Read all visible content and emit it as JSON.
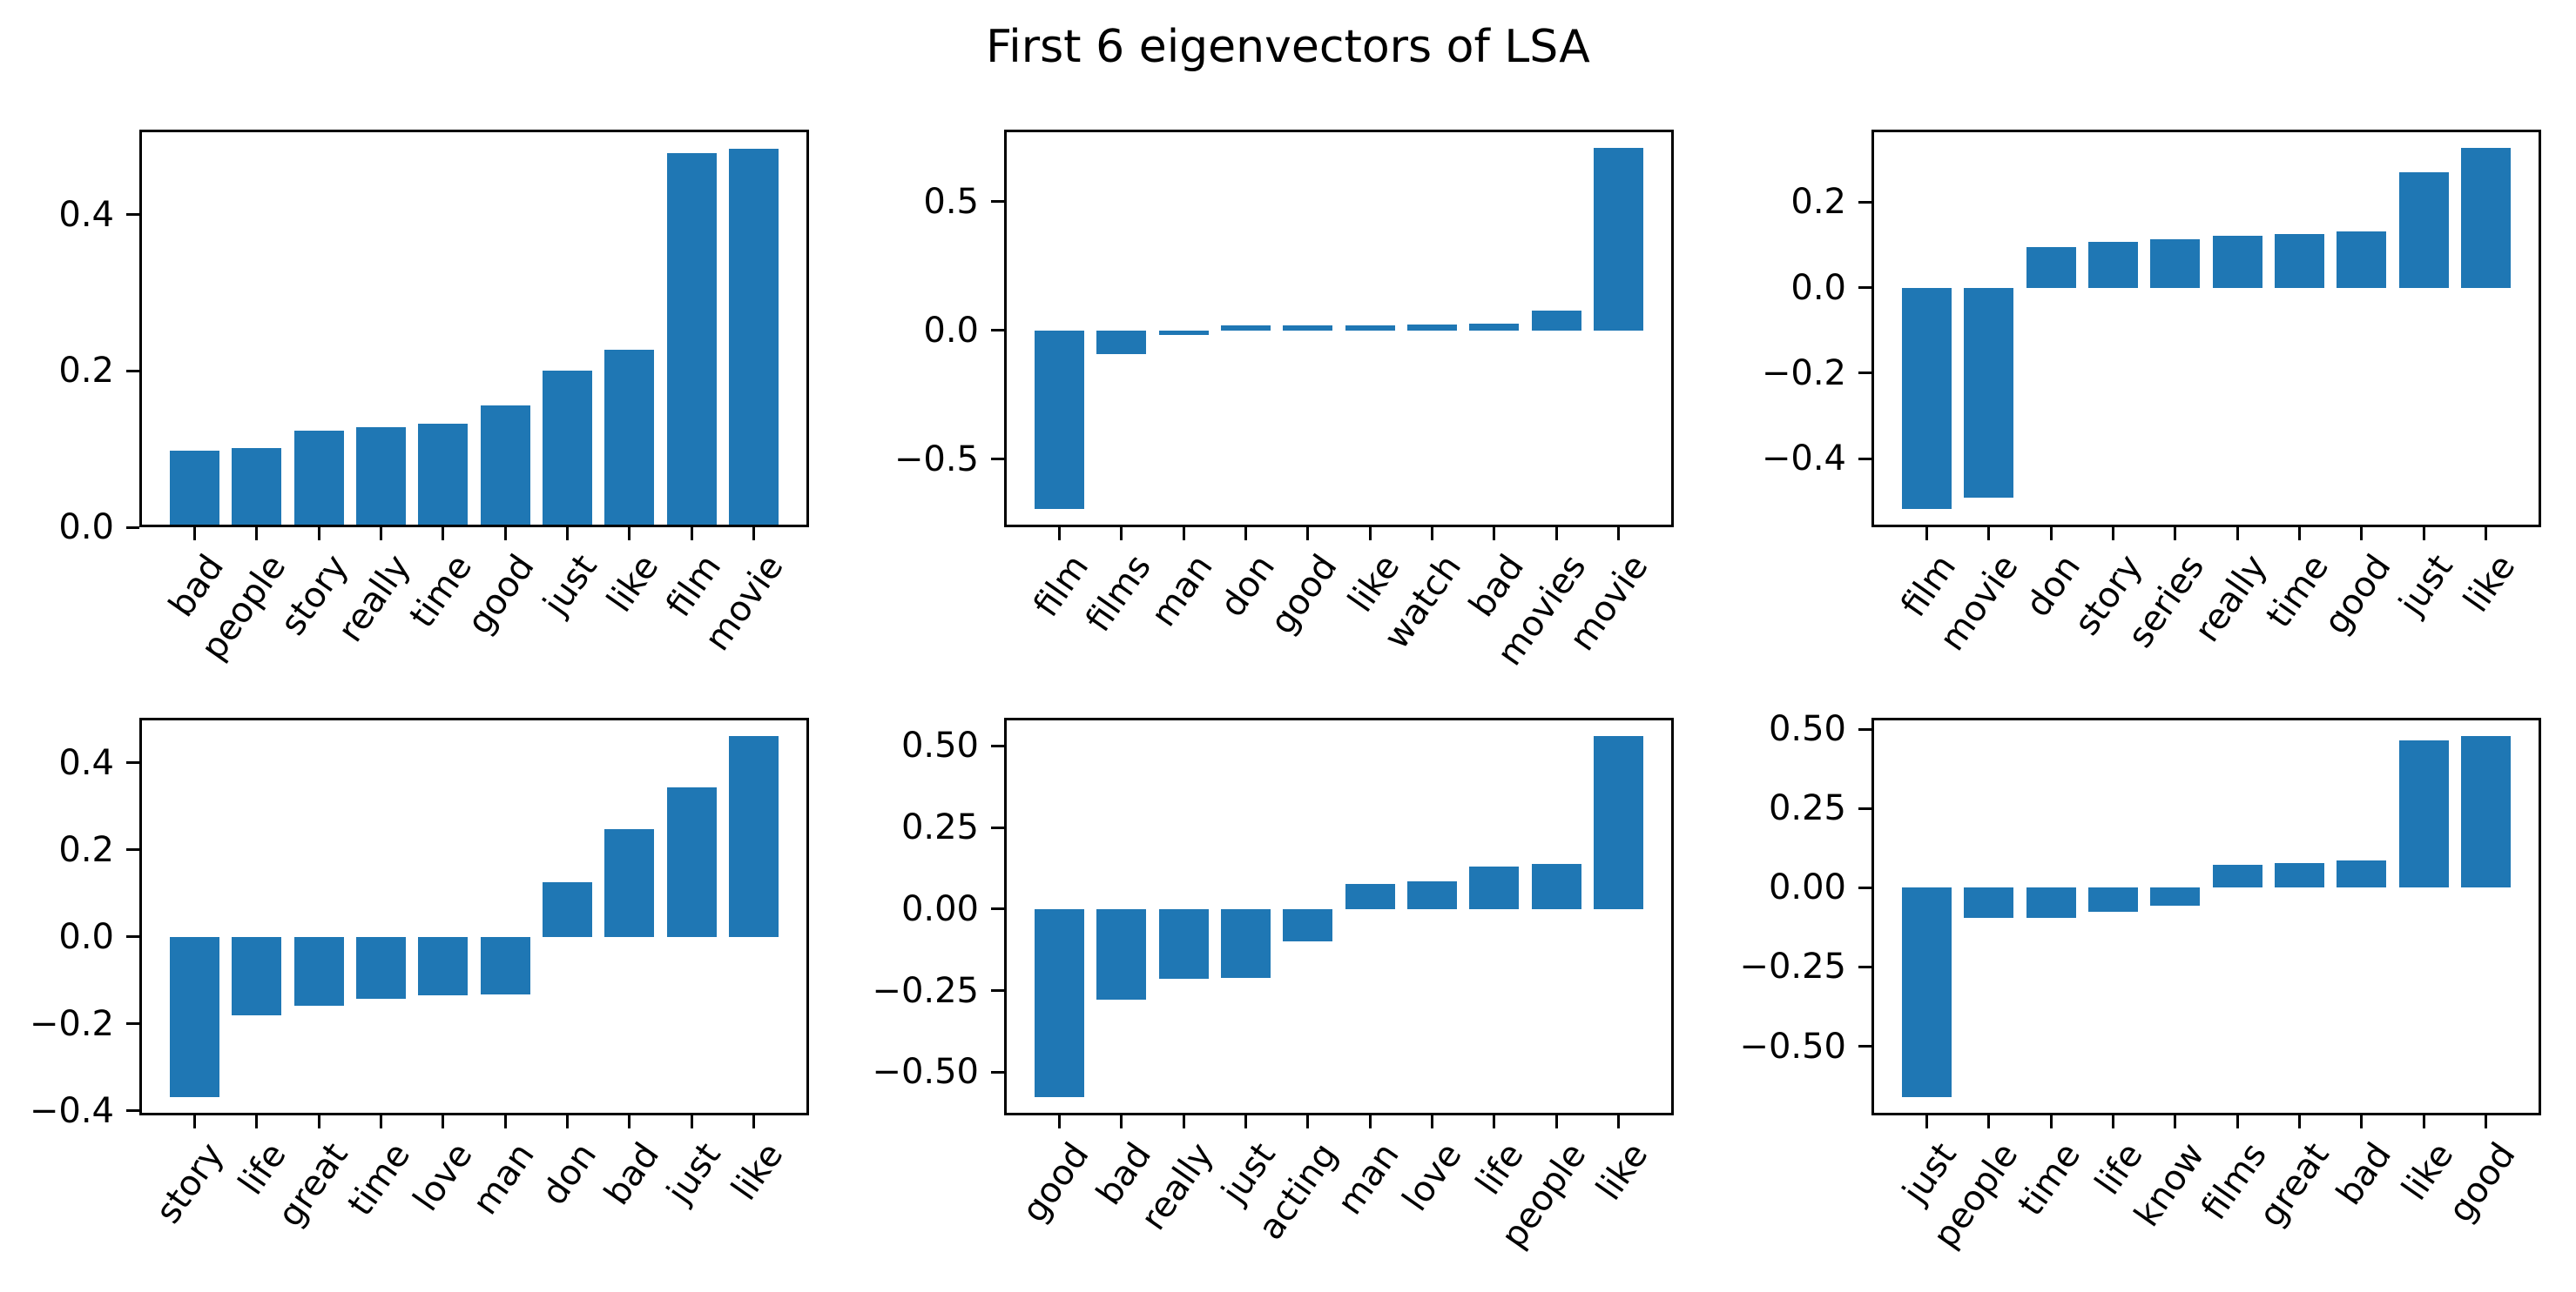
{
  "figure": {
    "title": "First 6 eigenvectors of LSA",
    "background": "#ffffff"
  },
  "style": {
    "bar_color": "#1f77b4",
    "axis_color": "#000000",
    "text_color": "#000000"
  },
  "chart_data": [
    {
      "type": "bar",
      "name": "eigenvector-1",
      "title": "",
      "xlabel": "",
      "ylabel": "",
      "grid": false,
      "legend": "none",
      "categories": [
        "bad",
        "people",
        "story",
        "really",
        "time",
        "good",
        "just",
        "like",
        "film",
        "movie"
      ],
      "values": [
        0.098,
        0.101,
        0.124,
        0.128,
        0.132,
        0.156,
        0.2,
        0.227,
        0.479,
        0.485
      ],
      "yticks": [
        0.0,
        0.2,
        0.4
      ],
      "ytick_labels": [
        "0.0",
        "0.2",
        "0.4"
      ],
      "ylim": [
        0.0,
        0.509
      ]
    },
    {
      "type": "bar",
      "name": "eigenvector-2",
      "title": "",
      "xlabel": "",
      "ylabel": "",
      "grid": false,
      "legend": "none",
      "categories": [
        "film",
        "films",
        "man",
        "don",
        "good",
        "like",
        "watch",
        "bad",
        "movies",
        "movie"
      ],
      "values": [
        -0.695,
        -0.091,
        -0.018,
        0.019,
        0.019,
        0.02,
        0.022,
        0.026,
        0.078,
        0.71
      ],
      "yticks": [
        -0.5,
        0.0,
        0.5
      ],
      "ytick_labels": [
        "−0.5",
        "0.0",
        "0.5"
      ],
      "ylim": [
        -0.765,
        0.78
      ]
    },
    {
      "type": "bar",
      "name": "eigenvector-3",
      "title": "",
      "xlabel": "",
      "ylabel": "",
      "grid": false,
      "legend": "none",
      "categories": [
        "film",
        "movie",
        "don",
        "story",
        "series",
        "really",
        "time",
        "good",
        "just",
        "like"
      ],
      "values": [
        -0.518,
        -0.491,
        0.094,
        0.106,
        0.112,
        0.122,
        0.125,
        0.132,
        0.27,
        0.327
      ],
      "yticks": [
        -0.4,
        -0.2,
        0.0,
        0.2
      ],
      "ytick_labels": [
        "−0.4",
        "−0.2",
        "0.0",
        "0.2"
      ],
      "ylim": [
        -0.56,
        0.369
      ]
    },
    {
      "type": "bar",
      "name": "eigenvector-4",
      "title": "",
      "xlabel": "",
      "ylabel": "",
      "grid": false,
      "legend": "none",
      "categories": [
        "story",
        "life",
        "great",
        "time",
        "love",
        "man",
        "don",
        "bad",
        "just",
        "like"
      ],
      "values": [
        -0.369,
        -0.18,
        -0.158,
        -0.143,
        -0.134,
        -0.132,
        0.125,
        0.248,
        0.344,
        0.462
      ],
      "yticks": [
        -0.4,
        -0.2,
        0.0,
        0.2,
        0.4
      ],
      "ytick_labels": [
        "−0.4",
        "−0.2",
        "0.0",
        "0.2",
        "0.4"
      ],
      "ylim": [
        -0.411,
        0.504
      ]
    },
    {
      "type": "bar",
      "name": "eigenvector-5",
      "title": "",
      "xlabel": "",
      "ylabel": "",
      "grid": false,
      "legend": "none",
      "categories": [
        "good",
        "bad",
        "really",
        "just",
        "acting",
        "man",
        "love",
        "life",
        "people",
        "like"
      ],
      "values": [
        -0.577,
        -0.277,
        -0.213,
        -0.212,
        -0.1,
        0.077,
        0.086,
        0.13,
        0.137,
        0.531
      ],
      "yticks": [
        -0.5,
        -0.25,
        0.0,
        0.25,
        0.5
      ],
      "ytick_labels": [
        "−0.50",
        "−0.25",
        "0.00",
        "0.25",
        "0.50"
      ],
      "ylim": [
        -0.632,
        0.586
      ]
    },
    {
      "type": "bar",
      "name": "eigenvector-6",
      "title": "",
      "xlabel": "",
      "ylabel": "",
      "grid": false,
      "legend": "none",
      "categories": [
        "just",
        "people",
        "time",
        "life",
        "know",
        "films",
        "great",
        "bad",
        "like",
        "good"
      ],
      "values": [
        -0.661,
        -0.094,
        -0.094,
        -0.076,
        -0.057,
        0.073,
        0.079,
        0.087,
        0.465,
        0.479
      ],
      "yticks": [
        -0.5,
        -0.25,
        0.0,
        0.25,
        0.5
      ],
      "ytick_labels": [
        "−0.50",
        "−0.25",
        "0.00",
        "0.25",
        "0.50"
      ],
      "ylim": [
        -0.718,
        0.536
      ]
    }
  ]
}
